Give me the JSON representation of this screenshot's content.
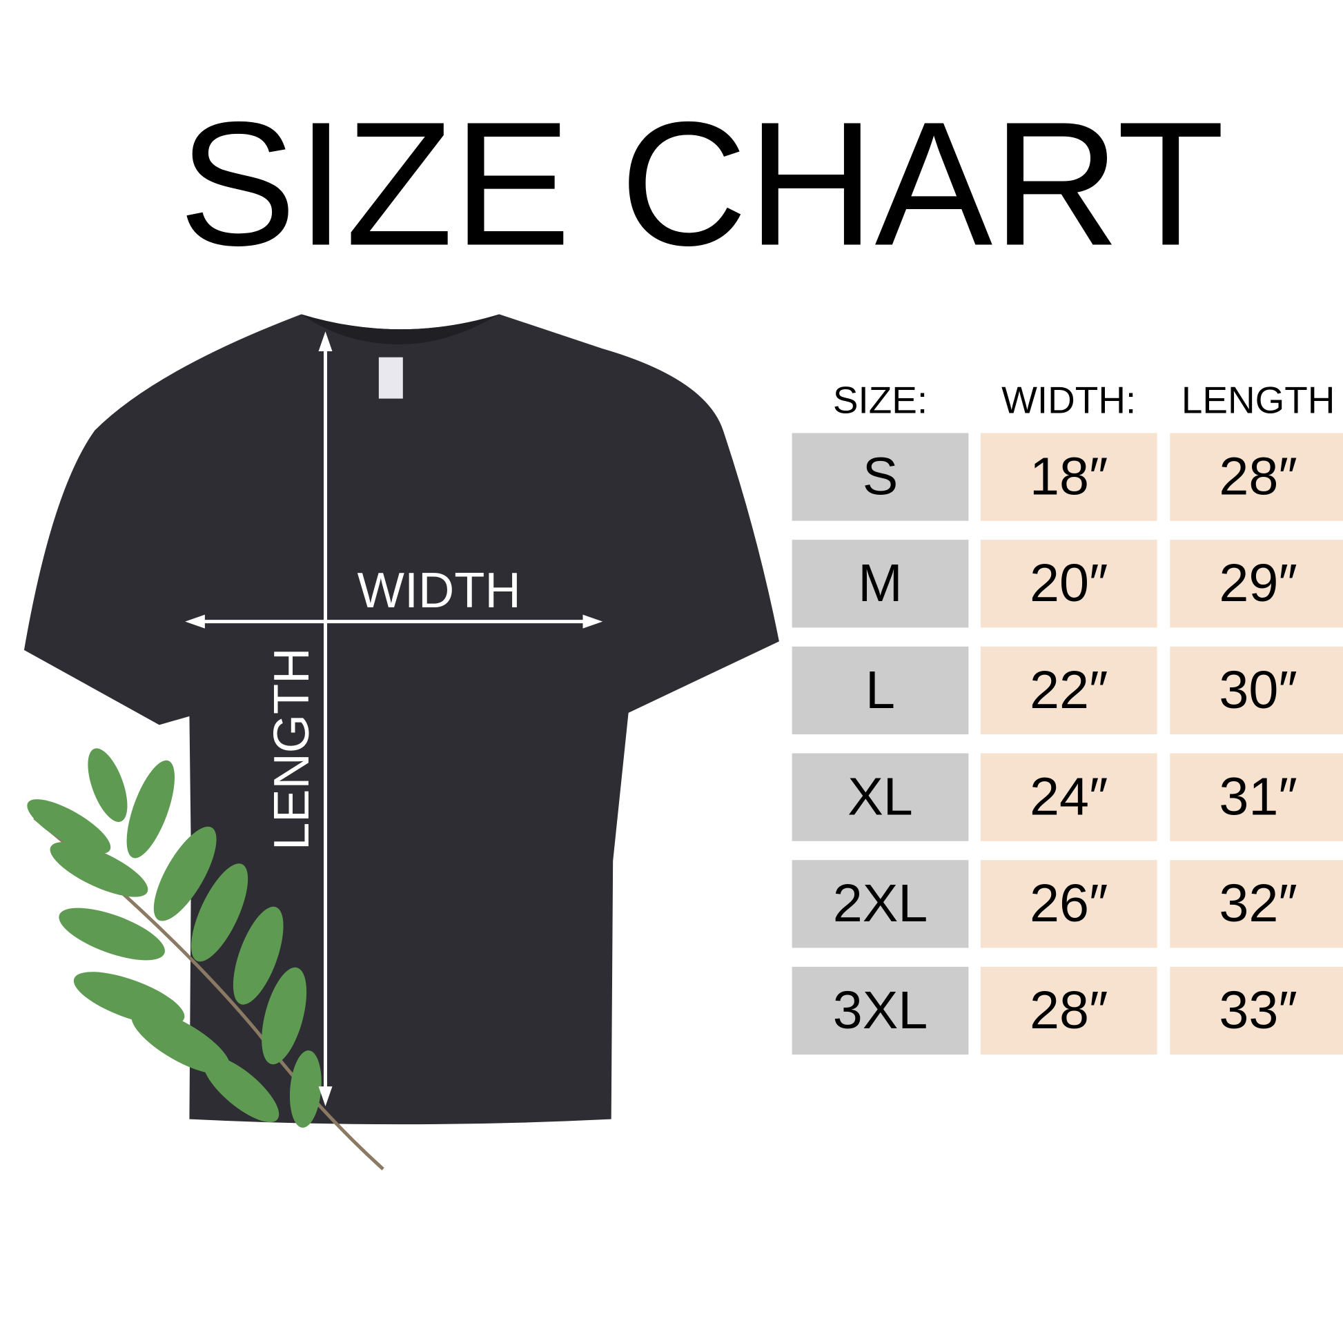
{
  "title": "SIZE CHART",
  "shirt": {
    "width_label": "WIDTH",
    "length_label": "LENGTH"
  },
  "table": {
    "headers": [
      "SIZE:",
      "WIDTH:",
      "LENGTH"
    ],
    "rows": [
      [
        "S",
        "18″",
        "28″"
      ],
      [
        "M",
        "20″",
        "29″"
      ],
      [
        "L",
        "22″",
        "30″"
      ],
      [
        "XL",
        "24″",
        "31″"
      ],
      [
        "2XL",
        "26″",
        "32″"
      ],
      [
        "3XL",
        "28″",
        "33″"
      ]
    ]
  }
}
